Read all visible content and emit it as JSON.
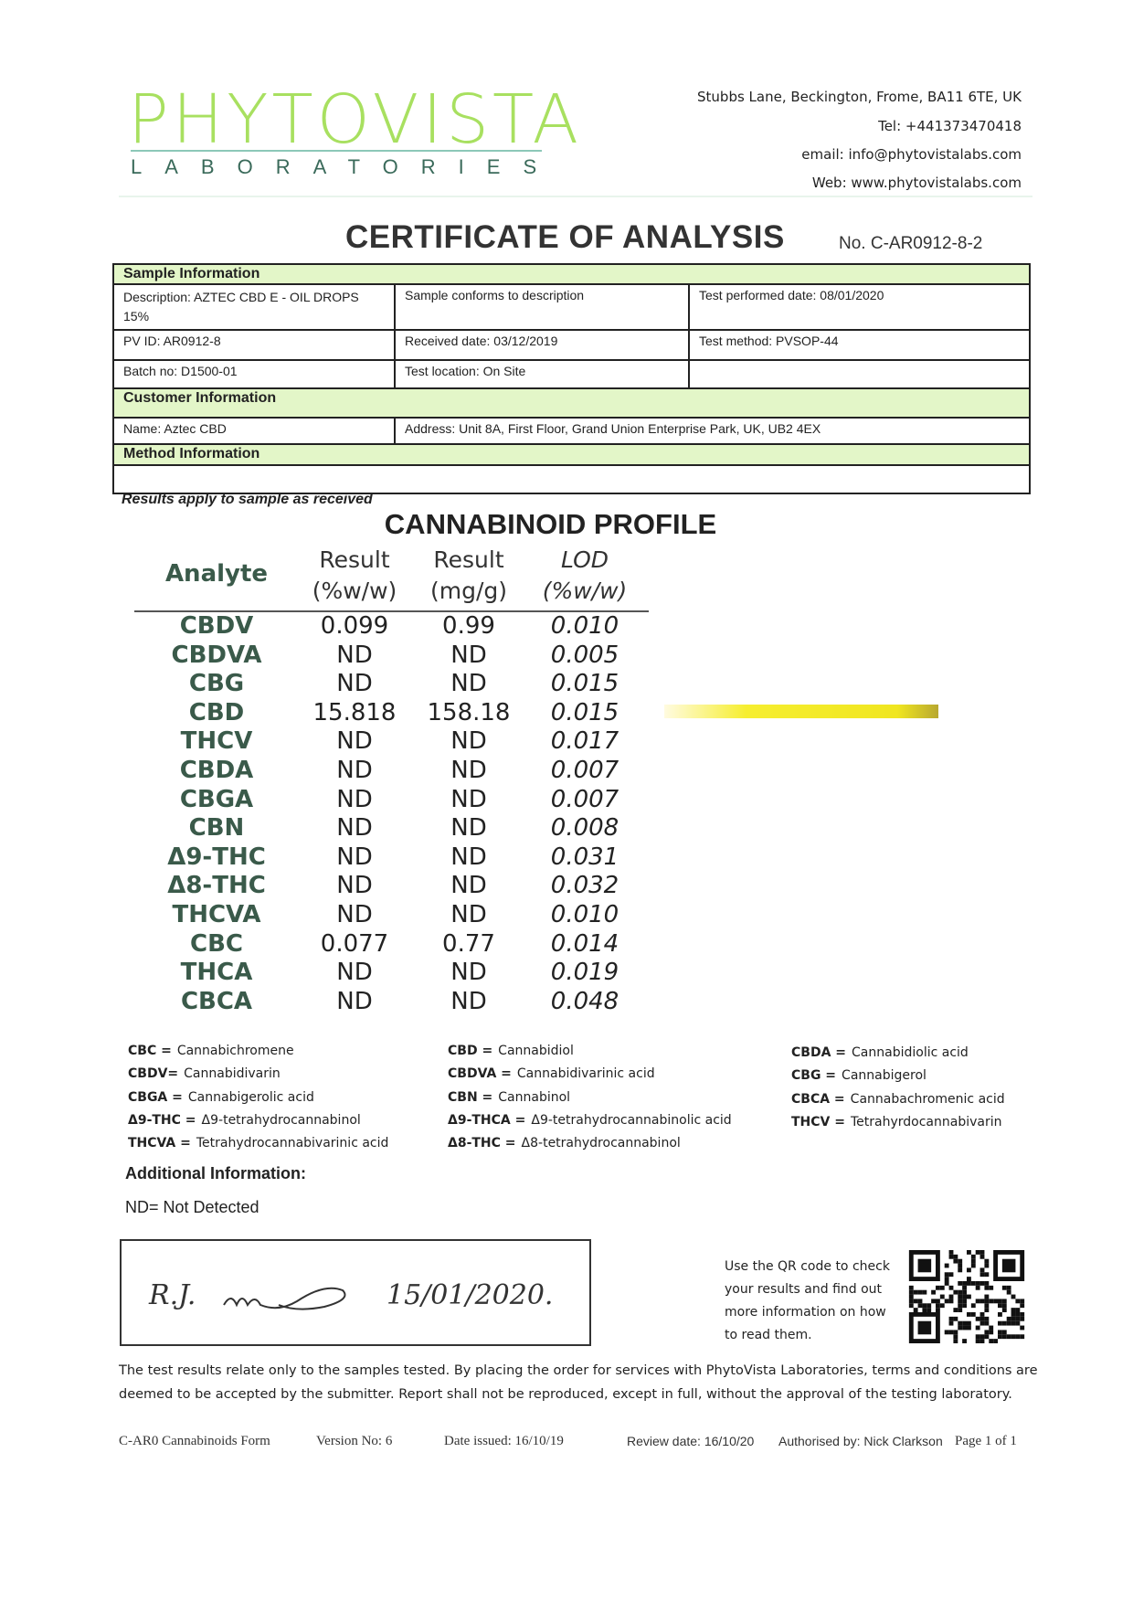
{
  "header": {
    "logo_main": "PHYTOVISTA",
    "logo_sub": "LABORATORIES",
    "address": "Stubbs Lane, Beckington, Frome, BA11 6TE, UK",
    "tel": "Tel: +441373470418",
    "email": "email: info@phytovistalabs.com",
    "web": "Web: www.phytovistalabs.com",
    "brand_color": "#a8e060"
  },
  "title": "CERTIFICATE OF ANALYSIS",
  "cert_no": "No. C-AR0912-8-2",
  "info": {
    "sample_header": "Sample Information",
    "description": "Description: AZTEC CBD E - OIL DROPS 15%",
    "conforms": "Sample conforms to description",
    "test_date": "Test performed date: 08/01/2020",
    "pv_id": "PV ID: AR0912-8",
    "received": "Received date: 03/12/2019",
    "method": "Test method: PVSOP-44",
    "batch": "Batch no: D1500-01",
    "location": "Test location: On Site",
    "customer_header": "Customer Information",
    "name": "Name: Aztec CBD",
    "address": "Address: Unit 8A, First Floor, Grand Union Enterprise Park, UK, UB2 4EX",
    "method_header": "Method Information",
    "section_color": "#e3f6c8"
  },
  "results_note": "Results apply to sample as received",
  "profile": {
    "title": "CANNABINOID PROFILE",
    "headers": {
      "analyte": "Analyte",
      "r1a": "Result",
      "r1b": "(%w/w)",
      "r2a": "Result",
      "r2b": "(mg/g)",
      "loda": "LOD",
      "lodb": "(%w/w)"
    },
    "rows": [
      {
        "analyte": "CBDV",
        "pct": "0.099",
        "mg": "0.99",
        "lod": "0.010"
      },
      {
        "analyte": "CBDVA",
        "pct": "ND",
        "mg": "ND",
        "lod": "0.005"
      },
      {
        "analyte": "CBG",
        "pct": "ND",
        "mg": "ND",
        "lod": "0.015"
      },
      {
        "analyte": "CBD",
        "pct": "15.818",
        "mg": "158.18",
        "lod": "0.015"
      },
      {
        "analyte": "THCV",
        "pct": "ND",
        "mg": "ND",
        "lod": "0.017"
      },
      {
        "analyte": "CBDA",
        "pct": "ND",
        "mg": "ND",
        "lod": "0.007"
      },
      {
        "analyte": "CBGA",
        "pct": "ND",
        "mg": "ND",
        "lod": "0.007"
      },
      {
        "analyte": "CBN",
        "pct": "ND",
        "mg": "ND",
        "lod": "0.008"
      },
      {
        "analyte": "Δ9-THC",
        "pct": "ND",
        "mg": "ND",
        "lod": "0.031"
      },
      {
        "analyte": "Δ8-THC",
        "pct": "ND",
        "mg": "ND",
        "lod": "0.032"
      },
      {
        "analyte": "THCVA",
        "pct": "ND",
        "mg": "ND",
        "lod": "0.010"
      },
      {
        "analyte": "CBC",
        "pct": "0.077",
        "mg": "0.77",
        "lod": "0.014"
      },
      {
        "analyte": "THCA",
        "pct": "ND",
        "mg": "ND",
        "lod": "0.019"
      },
      {
        "analyte": "CBCA",
        "pct": "ND",
        "mg": "ND",
        "lod": "0.048"
      }
    ],
    "highlight_color": "#f6ee30"
  },
  "abbreviations": [
    [
      [
        "CBC =",
        "Cannabichromene"
      ],
      [
        "CBDV=",
        "Cannabidivarin"
      ],
      [
        "CBGA =",
        "Cannabigerolic acid"
      ],
      [
        "Δ9-THC =",
        "Δ9-tetrahydrocannabinol"
      ],
      [
        "THCVA =",
        "Tetrahydrocannabivarinic acid"
      ]
    ],
    [
      [
        "CBD =",
        "Cannabidiol"
      ],
      [
        "CBDVA =",
        "Cannabidivarinic acid"
      ],
      [
        "CBN =",
        "Cannabinol"
      ],
      [
        "Δ9-THCA =",
        "Δ9-tetrahydrocannabinolic acid"
      ],
      [
        "Δ8-THC =",
        "Δ8-tetrahydrocannabinol"
      ]
    ],
    [
      [
        "CBDA =",
        "Cannabidiolic acid"
      ],
      [
        "CBG =",
        "Cannabigerol"
      ],
      [
        "CBCA =",
        "Cannabachromenic acid"
      ],
      [
        "THCV =",
        "Tetrahyrdocannabivarin"
      ]
    ]
  ],
  "additional_header": "Additional Information:",
  "nd_note": "ND= Not Detected",
  "signature": {
    "initials": "R.J.",
    "date": "15/01/2020."
  },
  "qr_text": [
    "Use the QR code to check",
    "your results and find out",
    "more information on how",
    "to read them."
  ],
  "disclaimer": [
    "The test results relate only to the samples tested.  By placing the order for services with PhytoVista Laboratories, terms and conditions are",
    "deemed to be accepted by the submitter. Report shall not be reproduced, except in full, without the approval of the testing laboratory."
  ],
  "footer": {
    "form": "C-AR0 Cannabinoids Form",
    "version": "Version No:  6",
    "issued": "Date issued: 16/10/19",
    "review": "Review  date: 16/10/20",
    "authorised": "Authorised by: Nick Clarkson",
    "page": "Page  1 of 1"
  }
}
